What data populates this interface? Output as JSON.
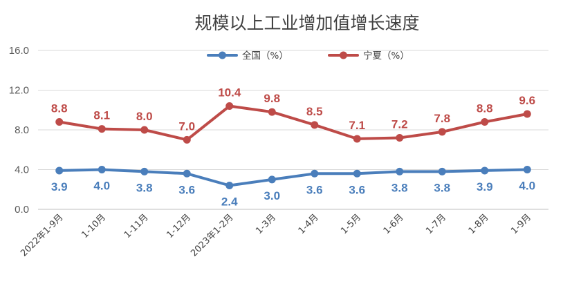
{
  "chart_data": {
    "type": "line",
    "title": "规模以上工业增加值增长速度",
    "categories": [
      "2022年1-9月",
      "1-10月",
      "1-11月",
      "1-12月",
      "2023年1-2月",
      "1-3月",
      "1-4月",
      "1-5月",
      "1-6月",
      "1-7月",
      "1-8月",
      "1-9月"
    ],
    "series": [
      {
        "name": "全国（%）",
        "color": "#4a7ebb",
        "label_position": "below",
        "values": [
          3.9,
          4.0,
          3.8,
          3.6,
          2.4,
          3.0,
          3.6,
          3.6,
          3.8,
          3.8,
          3.9,
          4.0
        ],
        "labels": [
          "3.9",
          "4.0",
          "3.8",
          "3.6",
          "2.4",
          "3.0",
          "3.6",
          "3.6",
          "3.8",
          "3.8",
          "3.9",
          "4.0"
        ]
      },
      {
        "name": "宁夏（%）",
        "color": "#be4b48",
        "label_position": "above",
        "values": [
          8.8,
          8.1,
          8.0,
          7.0,
          10.4,
          9.8,
          8.5,
          7.1,
          7.2,
          7.8,
          8.8,
          9.6
        ],
        "labels": [
          "8.8",
          "8.1",
          "8.0",
          "7.0",
          "10.4",
          "9.8",
          "8.5",
          "7.1",
          "7.2",
          "7.8",
          "8.8",
          "9.6"
        ]
      }
    ],
    "ylim": [
      0,
      16
    ],
    "yticks": [
      0,
      4,
      8,
      12,
      16
    ],
    "ytick_labels": [
      "0.0",
      "4.0",
      "8.0",
      "12.0",
      "16.0"
    ],
    "xlabel": "",
    "ylabel": "",
    "grid": true,
    "legend_position": "top-center"
  }
}
